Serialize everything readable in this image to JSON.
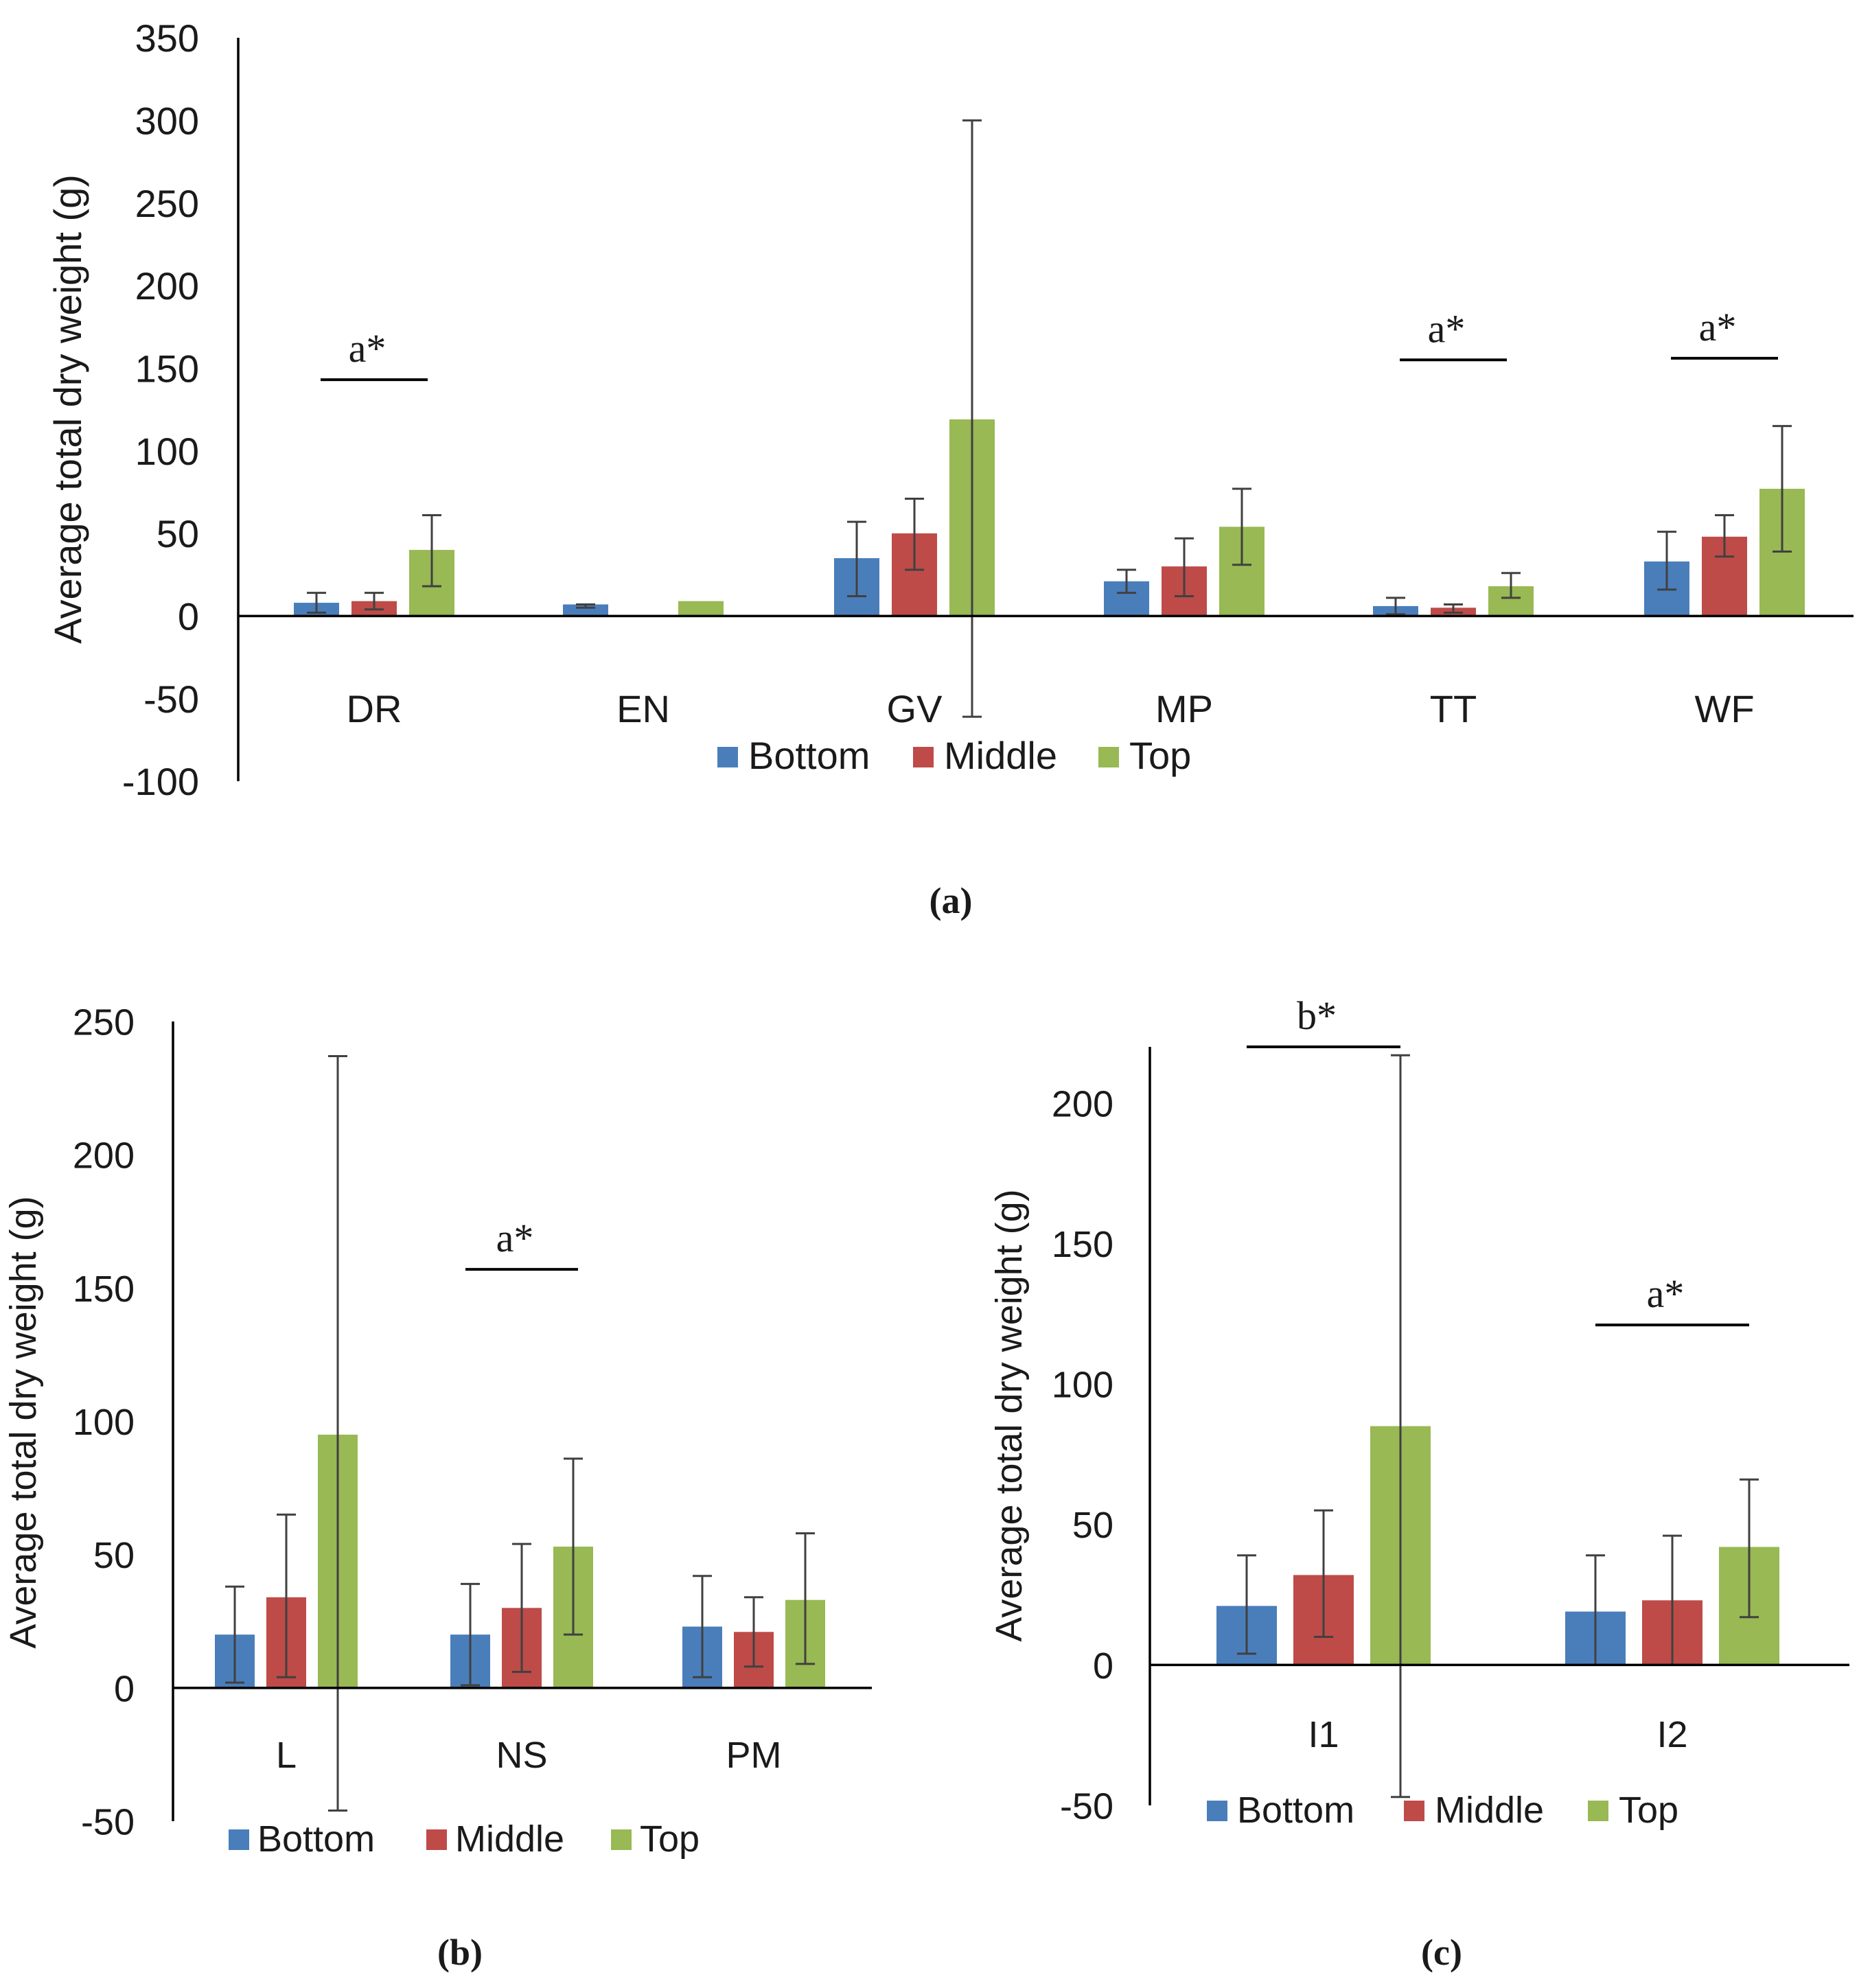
{
  "colors": {
    "Bottom": "#4a7ebb",
    "Middle": "#be4b48",
    "Top": "#98b954",
    "axis": "#000000",
    "errorbar": "#404040"
  },
  "chart_data": [
    {
      "id": "a",
      "type": "bar",
      "caption": "(a)",
      "title": "",
      "xlabel": "",
      "ylabel": "Average total dry weight (g)",
      "ylim": [
        -100,
        350
      ],
      "yticks": [
        -100,
        -50,
        0,
        50,
        100,
        150,
        200,
        250,
        300,
        350
      ],
      "ytick_labels": [
        "-100",
        "-50",
        "0",
        "50",
        "100",
        "150",
        "200",
        "250",
        "300",
        "350"
      ],
      "categories": [
        "DR",
        "EN",
        "GV",
        "MP",
        "TT",
        "WF"
      ],
      "legend": [
        "Bottom",
        "Middle",
        "Top"
      ],
      "legend_position": "bottom-center",
      "series": [
        {
          "name": "Bottom",
          "values": [
            8,
            7,
            35,
            21,
            6,
            33
          ],
          "err_low": [
            2,
            5,
            12,
            14,
            1,
            16
          ],
          "err_high": [
            14,
            7,
            57,
            28,
            11,
            51
          ]
        },
        {
          "name": "Middle",
          "values": [
            9,
            null,
            50,
            30,
            5,
            48
          ],
          "err_low": [
            4,
            null,
            28,
            12,
            2,
            36
          ],
          "err_high": [
            14,
            null,
            71,
            47,
            7,
            61
          ]
        },
        {
          "name": "Top",
          "values": [
            40,
            9,
            119,
            54,
            18,
            77
          ],
          "err_low": [
            18,
            9,
            -61,
            31,
            11,
            39
          ],
          "err_high": [
            61,
            9,
            300,
            77,
            26,
            115
          ]
        }
      ],
      "annotations": [
        {
          "text": "a*",
          "category": "DR",
          "y": 143
        },
        {
          "text": "a*",
          "category": "TT",
          "y": 155
        },
        {
          "text": "a*",
          "category": "WF",
          "y": 156
        }
      ]
    },
    {
      "id": "b",
      "type": "bar",
      "caption": "(b)",
      "title": "",
      "xlabel": "",
      "ylabel": "Average total dry weight (g)",
      "ylim": [
        -50,
        250
      ],
      "yticks": [
        -50,
        0,
        50,
        100,
        150,
        200,
        250
      ],
      "ytick_labels": [
        "-50",
        "0",
        "50",
        "100",
        "150",
        "200",
        "250"
      ],
      "categories": [
        "L",
        "NS",
        "PM"
      ],
      "legend": [
        "Bottom",
        "Middle",
        "Top"
      ],
      "legend_position": "bottom-center",
      "series": [
        {
          "name": "Bottom",
          "values": [
            20,
            20,
            23
          ],
          "err_low": [
            2,
            1,
            4
          ],
          "err_high": [
            38,
            39,
            42
          ]
        },
        {
          "name": "Middle",
          "values": [
            34,
            30,
            21
          ],
          "err_low": [
            4,
            6,
            8
          ],
          "err_high": [
            65,
            54,
            34
          ]
        },
        {
          "name": "Top",
          "values": [
            95,
            53,
            33
          ],
          "err_low": [
            -46,
            20,
            9
          ],
          "err_high": [
            237,
            86,
            58
          ]
        }
      ],
      "annotations": [
        {
          "text": "a*",
          "category": "NS",
          "y": 157
        }
      ]
    },
    {
      "id": "c",
      "type": "bar",
      "caption": "(c)",
      "title": "",
      "xlabel": "",
      "ylabel": "Average total dry weight (g)",
      "ylim": [
        -50,
        220
      ],
      "yticks": [
        -50,
        0,
        50,
        100,
        150,
        200
      ],
      "ytick_labels": [
        "-50",
        "0",
        "50",
        "100",
        "150",
        "200"
      ],
      "categories": [
        "I1",
        "I2"
      ],
      "legend": [
        "Bottom",
        "Middle",
        "Top"
      ],
      "legend_position": "bottom-center",
      "series": [
        {
          "name": "Bottom",
          "values": [
            21,
            19
          ],
          "err_low": [
            4,
            0
          ],
          "err_high": [
            39,
            39
          ]
        },
        {
          "name": "Middle",
          "values": [
            32,
            23
          ],
          "err_low": [
            10,
            0
          ],
          "err_high": [
            55,
            46
          ]
        },
        {
          "name": "Top",
          "values": [
            85,
            42
          ],
          "err_low": [
            -47,
            17
          ],
          "err_high": [
            217,
            66
          ]
        }
      ],
      "annotations": [
        {
          "text": "b*",
          "category": "I1",
          "y": 220
        },
        {
          "text": "a*",
          "category": "I2",
          "y": 121
        }
      ]
    }
  ]
}
